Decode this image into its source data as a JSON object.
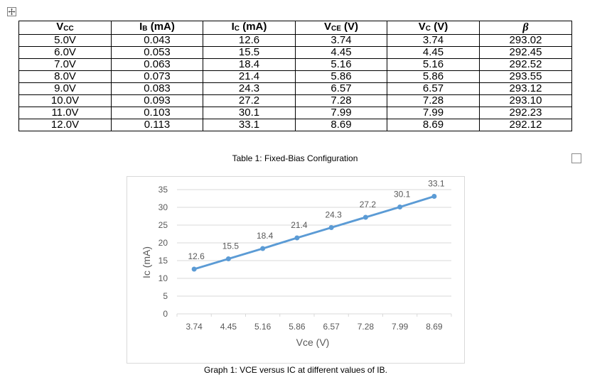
{
  "table": {
    "headers": [
      {
        "main": "V",
        "sub": "CC",
        "rest": ""
      },
      {
        "main": "I",
        "sub": "B",
        "rest": " (mA)"
      },
      {
        "main": "I",
        "sub": "C",
        "rest": " (mA)"
      },
      {
        "main": "V",
        "sub": "CE",
        "rest": " (V)"
      },
      {
        "main": "V",
        "sub": "C",
        "rest": " (V)"
      },
      {
        "main": "β",
        "sub": "",
        "rest": ""
      }
    ],
    "rows": [
      [
        "5.0V",
        "0.043",
        "12.6",
        "3.74",
        "3.74",
        "293.02"
      ],
      [
        "6.0V",
        "0.053",
        "15.5",
        "4.45",
        "4.45",
        "292.45"
      ],
      [
        "7.0V",
        "0.063",
        "18.4",
        "5.16",
        "5.16",
        "292.52"
      ],
      [
        "8.0V",
        "0.073",
        "21.4",
        "5.86",
        "5.86",
        "293.55"
      ],
      [
        "9.0V",
        "0.083",
        "24.3",
        "6.57",
        "6.57",
        "293.12"
      ],
      [
        "10.0V",
        "0.093",
        "27.2",
        "7.28",
        "7.28",
        "293.10"
      ],
      [
        "11.0V",
        "0.103",
        "30.1",
        "7.99",
        "7.99",
        "292.23"
      ],
      [
        "12.0V",
        "0.113",
        "33.1",
        "8.69",
        "8.69",
        "292.12"
      ]
    ],
    "caption": "Table 1: Fixed-Bias Configuration"
  },
  "graph": {
    "caption": "Graph 1: VCE versus IC at different values of IB."
  },
  "chart_data": {
    "type": "line",
    "categories": [
      "3.74",
      "4.45",
      "5.16",
      "5.86",
      "6.57",
      "7.28",
      "7.99",
      "8.69"
    ],
    "series": [
      {
        "values": [
          12.6,
          15.5,
          18.4,
          21.4,
          24.3,
          27.2,
          30.1,
          33.1
        ],
        "color": "#5b9bd5"
      }
    ],
    "data_labels": [
      "12.6",
      "15.5",
      "18.4",
      "21.4",
      "24.3",
      "27.2",
      "30.1",
      "33.1"
    ],
    "xlabel": "Vce (V)",
    "ylabel": "Ic (mA)",
    "ylim": [
      0,
      35
    ],
    "yticks": [
      "0",
      "5",
      "10",
      "15",
      "20",
      "25",
      "30",
      "35"
    ],
    "grid": true,
    "legend": "none"
  },
  "colors": {
    "series": "#5b9bd5",
    "gridline": "#d9d9d9",
    "axis_text": "#595959"
  },
  "icons": {
    "move_handle": "move-arrows-icon",
    "resize_handle": "resize-square-icon"
  }
}
